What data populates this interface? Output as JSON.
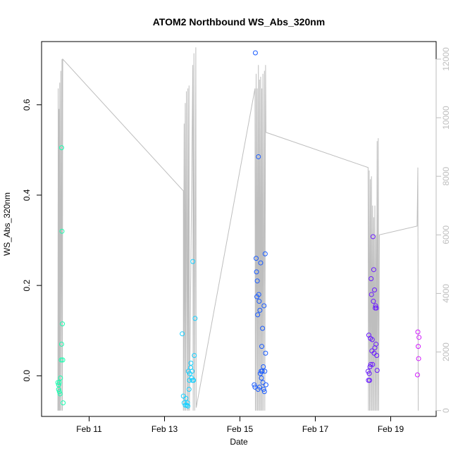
{
  "chart_data": {
    "type": "scatter",
    "title": "ATOM2 Northbound WS_Abs_320nm",
    "xlabel": "Date",
    "ylabel": "WS_Abs_320nm",
    "x_unit": "days since Feb 10 00:00",
    "xlim": [
      0.0,
      10.0
    ],
    "ylim": [
      -0.09,
      0.74
    ],
    "y2lim": [
      -200,
      12600
    ],
    "x_ticks": [
      {
        "value": 1,
        "label": "Feb 11"
      },
      {
        "value": 3,
        "label": "Feb 13"
      },
      {
        "value": 5,
        "label": "Feb 15"
      },
      {
        "value": 7,
        "label": "Feb 17"
      },
      {
        "value": 9,
        "label": "Feb 19"
      }
    ],
    "y_ticks": [
      {
        "value": 0.0,
        "label": "0.0"
      },
      {
        "value": 0.2,
        "label": "0.2"
      },
      {
        "value": 0.4,
        "label": "0.4"
      },
      {
        "value": 0.6,
        "label": "0.6"
      }
    ],
    "y2_ticks": [
      {
        "value": 0,
        "label": "0"
      },
      {
        "value": 2000,
        "label": "2000"
      },
      {
        "value": 4000,
        "label": "4000"
      },
      {
        "value": 6000,
        "label": "6000"
      },
      {
        "value": 8000,
        "label": "8000"
      },
      {
        "value": 10000,
        "label": "10000"
      },
      {
        "value": 12000,
        "label": "12000"
      }
    ],
    "grid": false,
    "legend": "none",
    "colors": {
      "line": "#bebebe",
      "axis": "#000000",
      "right_axis": "#bebebe"
    },
    "series": [
      {
        "color": "#19ffb0",
        "points": [
          [
            0.17,
            -0.015
          ],
          [
            0.19,
            -0.02
          ],
          [
            0.21,
            -0.015
          ],
          [
            0.19,
            -0.03
          ],
          [
            0.21,
            -0.035
          ],
          [
            0.23,
            -0.04
          ],
          [
            0.24,
            -0.005
          ],
          [
            0.26,
            0.035
          ],
          [
            0.27,
            0.505
          ],
          [
            0.28,
            0.32
          ],
          [
            0.29,
            0.115
          ],
          [
            0.27,
            0.07
          ],
          [
            0.3,
            0.035
          ],
          [
            0.31,
            -0.06
          ]
        ]
      },
      {
        "color": "#19d0ff",
        "points": [
          [
            3.47,
            0.093
          ],
          [
            3.5,
            -0.045
          ],
          [
            3.52,
            -0.06
          ],
          [
            3.55,
            -0.065
          ],
          [
            3.57,
            -0.05
          ],
          [
            3.59,
            -0.065
          ],
          [
            3.61,
            -0.06
          ],
          [
            3.62,
            -0.067
          ],
          [
            3.63,
            0.01
          ],
          [
            3.65,
            -0.03
          ],
          [
            3.66,
            -0.01
          ],
          [
            3.67,
            0.005
          ],
          [
            3.69,
            0.018
          ],
          [
            3.7,
            0.028
          ],
          [
            3.72,
            -0.005
          ],
          [
            3.73,
            0.01
          ],
          [
            3.74,
            -0.01
          ],
          [
            3.75,
            0.253
          ],
          [
            3.77,
            -0.01
          ],
          [
            3.79,
            0.045
          ],
          [
            3.81,
            0.127
          ]
        ]
      },
      {
        "color": "#1a5cff",
        "points": [
          [
            5.38,
            -0.02
          ],
          [
            5.4,
            -0.025
          ],
          [
            5.41,
            0.715
          ],
          [
            5.43,
            0.26
          ],
          [
            5.44,
            0.23
          ],
          [
            5.45,
            0.175
          ],
          [
            5.46,
            0.21
          ],
          [
            5.47,
            0.135
          ],
          [
            5.48,
            -0.03
          ],
          [
            5.49,
            0.485
          ],
          [
            5.5,
            0.18
          ],
          [
            5.51,
            0.165
          ],
          [
            5.52,
            -0.025
          ],
          [
            5.53,
            0.145
          ],
          [
            5.54,
            0.005
          ],
          [
            5.55,
            0.25
          ],
          [
            5.56,
            0.01
          ],
          [
            5.57,
            -0.005
          ],
          [
            5.58,
            0.065
          ],
          [
            5.59,
            0.01
          ],
          [
            5.6,
            0.105
          ],
          [
            5.61,
            -0.015
          ],
          [
            5.62,
            0.02
          ],
          [
            5.63,
            -0.03
          ],
          [
            5.64,
            0.155
          ],
          [
            5.65,
            -0.035
          ],
          [
            5.66,
            0.01
          ],
          [
            5.67,
            0.27
          ],
          [
            5.68,
            0.05
          ],
          [
            5.69,
            -0.02
          ]
        ]
      },
      {
        "color": "#6a1aff",
        "points": [
          [
            8.4,
            0.01
          ],
          [
            8.41,
            -0.01
          ],
          [
            8.42,
            0.09
          ],
          [
            8.43,
            0.005
          ],
          [
            8.44,
            -0.01
          ],
          [
            8.45,
            0.02
          ],
          [
            8.46,
            0.083
          ],
          [
            8.47,
            0.025
          ],
          [
            8.48,
            0.215
          ],
          [
            8.49,
            0.18
          ],
          [
            8.5,
            0.055
          ],
          [
            8.51,
            0.08
          ],
          [
            8.52,
            0.025
          ],
          [
            8.53,
            0.308
          ],
          [
            8.54,
            0.165
          ],
          [
            8.55,
            0.235
          ],
          [
            8.56,
            0.05
          ],
          [
            8.57,
            0.19
          ],
          [
            8.58,
            0.062
          ],
          [
            8.59,
            0.15
          ],
          [
            8.6,
            0.155
          ],
          [
            8.61,
            0.07
          ],
          [
            8.62,
            0.15
          ],
          [
            8.63,
            0.045
          ],
          [
            8.64,
            0.012
          ]
        ]
      },
      {
        "color": "#d11aff",
        "points": [
          [
            9.71,
            0.002
          ],
          [
            9.72,
            0.097
          ],
          [
            9.73,
            0.065
          ],
          [
            9.74,
            0.038
          ],
          [
            9.75,
            0.085
          ]
        ]
      }
    ],
    "secondary_series": {
      "axis": "right",
      "color": "#bebebe",
      "points": [
        [
          0.17,
          0
        ],
        [
          0.18,
          11000
        ],
        [
          0.19,
          0
        ],
        [
          0.2,
          10300
        ],
        [
          0.21,
          0
        ],
        [
          0.22,
          11200
        ],
        [
          0.23,
          0
        ],
        [
          0.25,
          11600
        ],
        [
          0.26,
          0
        ],
        [
          0.28,
          12000
        ],
        [
          0.29,
          0
        ],
        [
          0.3,
          12000
        ],
        [
          3.5,
          7500
        ],
        [
          3.5,
          0
        ],
        [
          3.52,
          9800
        ],
        [
          3.53,
          0
        ],
        [
          3.55,
          10500
        ],
        [
          3.56,
          0
        ],
        [
          3.58,
          10900
        ],
        [
          3.6,
          0
        ],
        [
          3.62,
          11000
        ],
        [
          3.63,
          0
        ],
        [
          3.65,
          11100
        ],
        [
          3.66,
          0
        ],
        [
          3.75,
          11800
        ],
        [
          3.76,
          0
        ],
        [
          3.78,
          12200
        ],
        [
          3.8,
          0
        ],
        [
          3.83,
          12400
        ],
        [
          3.84,
          100
        ],
        [
          5.4,
          11000
        ],
        [
          5.41,
          0
        ],
        [
          5.43,
          11500
        ],
        [
          5.44,
          0
        ],
        [
          5.46,
          11000
        ],
        [
          5.47,
          0
        ],
        [
          5.49,
          11800
        ],
        [
          5.5,
          0
        ],
        [
          5.52,
          11300
        ],
        [
          5.53,
          0
        ],
        [
          5.55,
          11400
        ],
        [
          5.56,
          0
        ],
        [
          5.58,
          11000
        ],
        [
          5.59,
          0
        ],
        [
          5.61,
          11500
        ],
        [
          5.62,
          0
        ],
        [
          5.65,
          11600
        ],
        [
          5.66,
          0
        ],
        [
          5.68,
          11800
        ],
        [
          5.69,
          9500
        ],
        [
          8.4,
          8300
        ],
        [
          8.41,
          0
        ],
        [
          8.43,
          8200
        ],
        [
          8.44,
          0
        ],
        [
          8.46,
          7900
        ],
        [
          8.47,
          0
        ],
        [
          8.49,
          8000
        ],
        [
          8.5,
          0
        ],
        [
          8.52,
          7000
        ],
        [
          8.53,
          0
        ],
        [
          8.55,
          6600
        ],
        [
          8.56,
          0
        ],
        [
          8.58,
          7000
        ],
        [
          8.59,
          0
        ],
        [
          8.61,
          6000
        ],
        [
          8.62,
          0
        ],
        [
          8.64,
          9200
        ],
        [
          8.65,
          0
        ],
        [
          8.67,
          9300
        ],
        [
          8.68,
          0
        ],
        [
          8.7,
          6000
        ],
        [
          9.7,
          6300
        ],
        [
          9.72,
          8300
        ],
        [
          9.73,
          0
        ]
      ]
    }
  }
}
